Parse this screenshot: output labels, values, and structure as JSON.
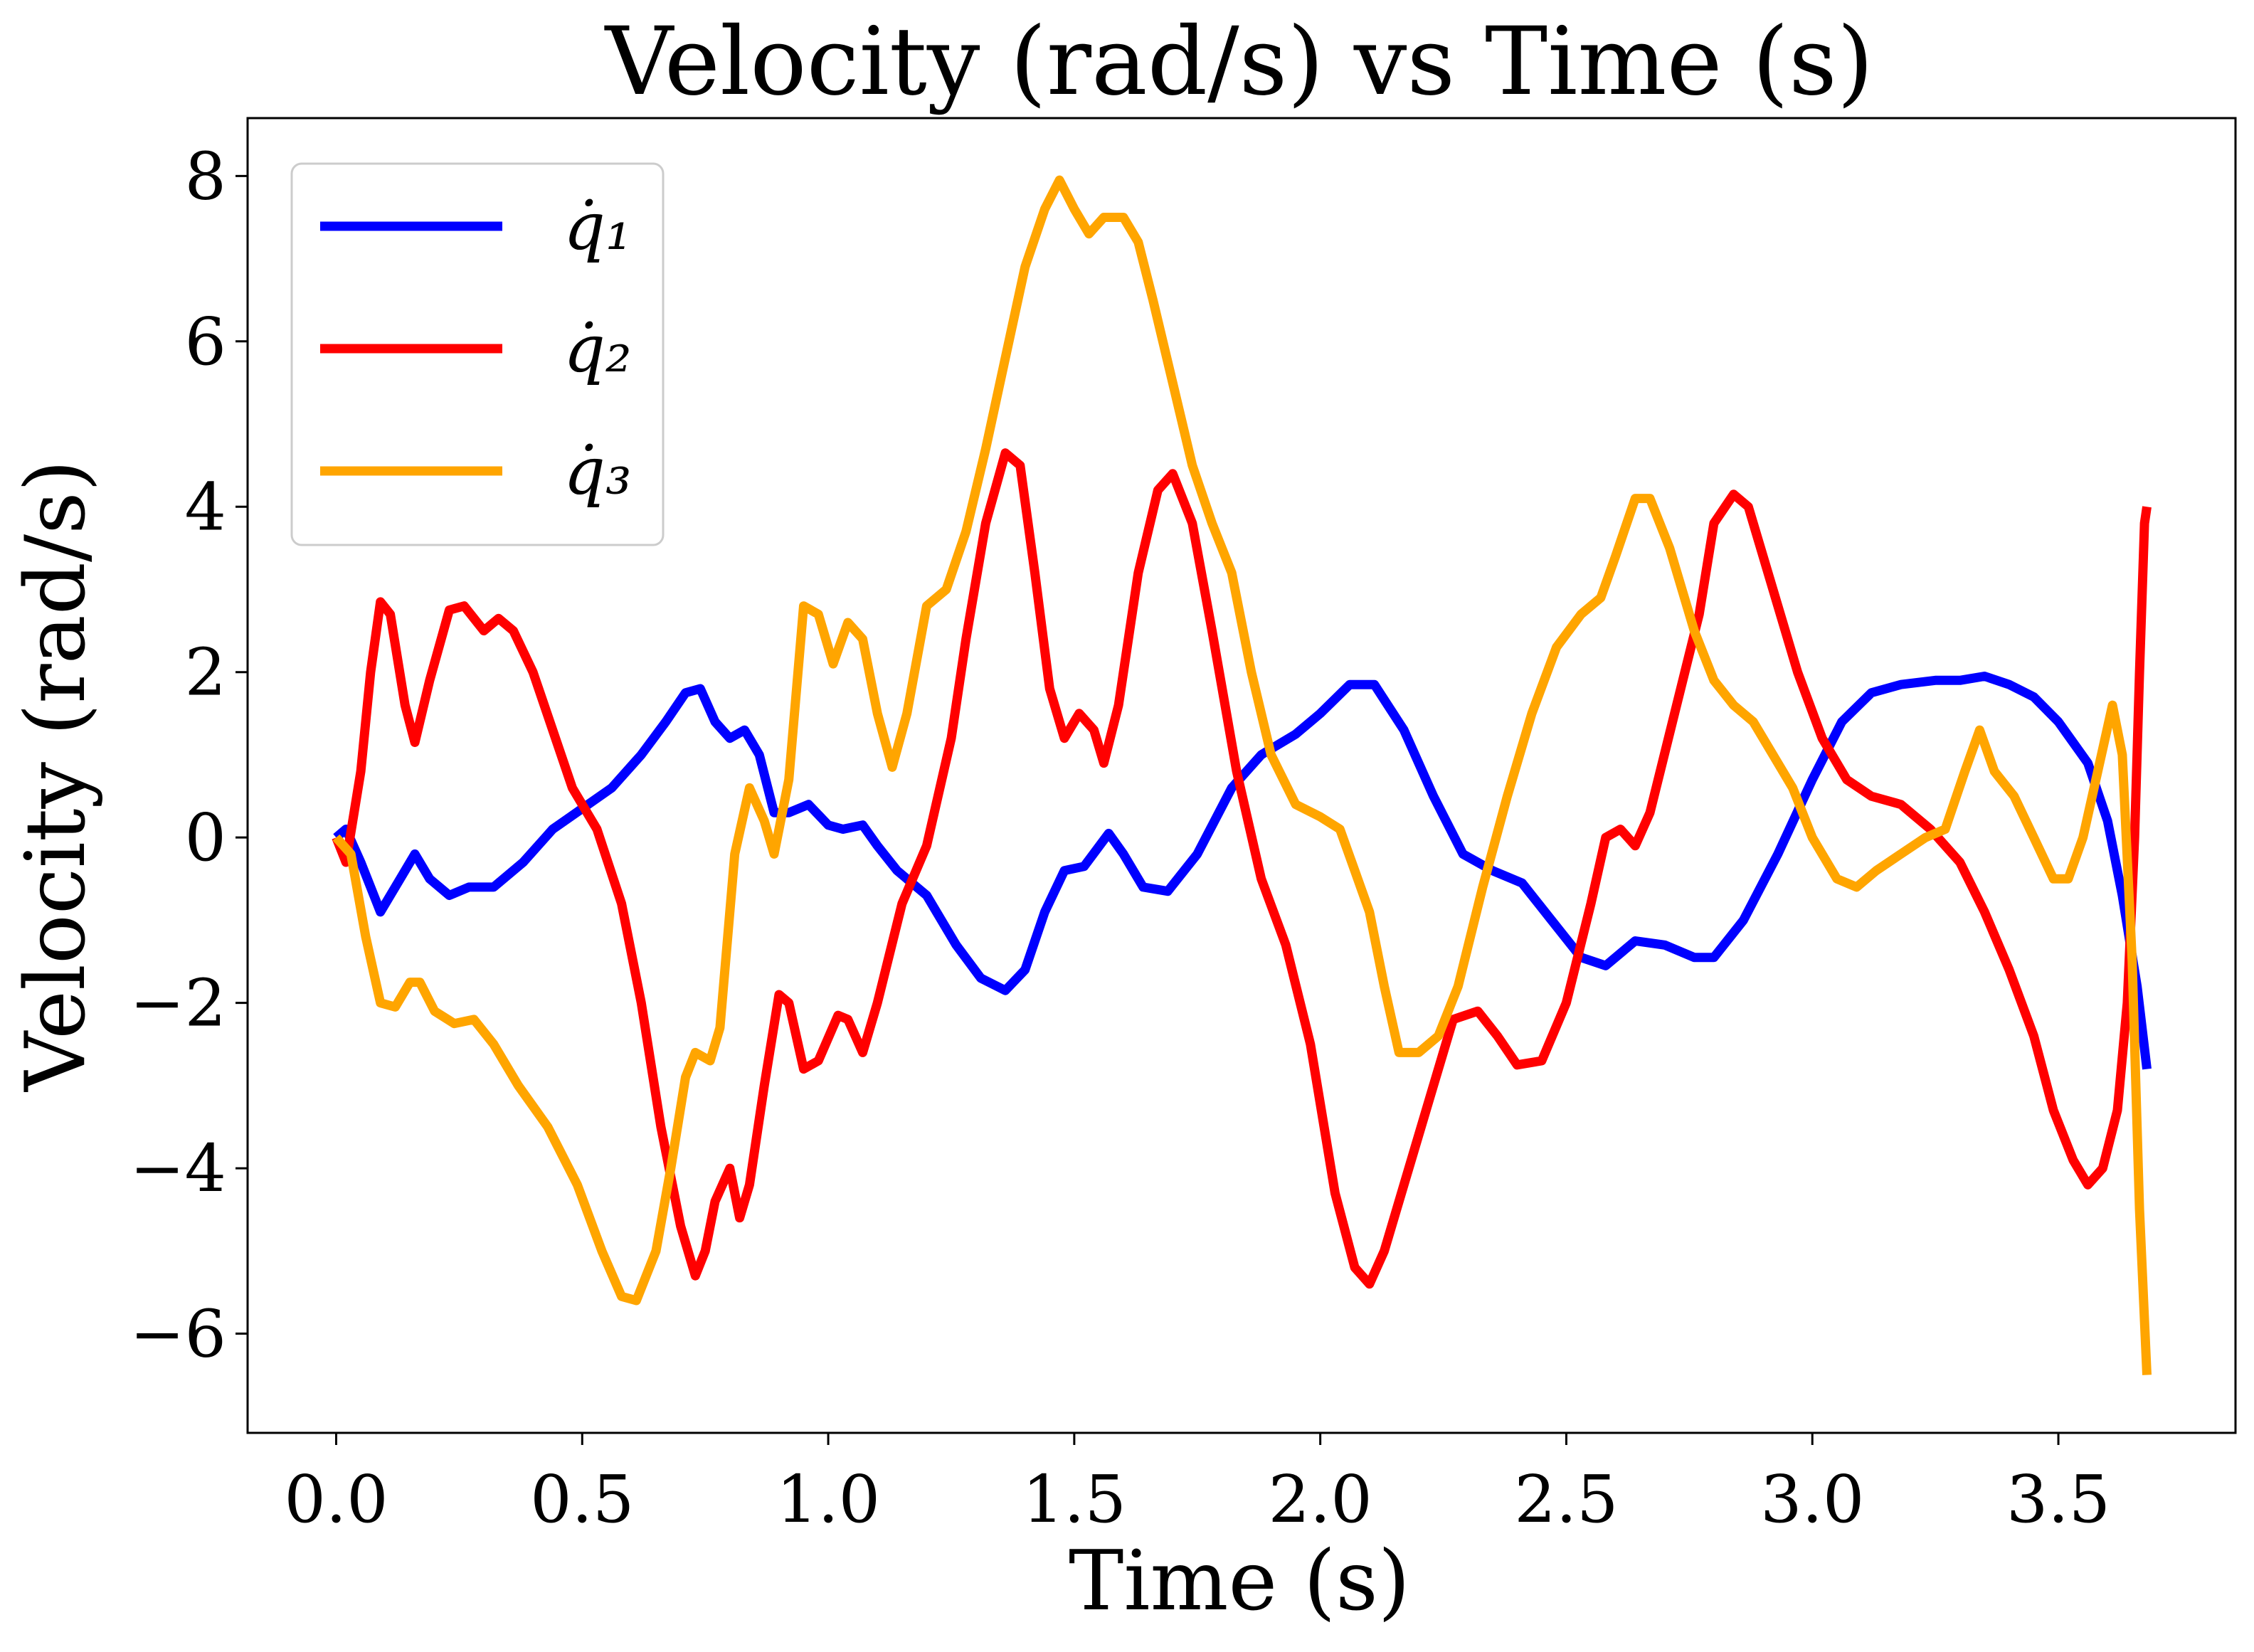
{
  "chart_data": {
    "type": "line",
    "title": "Velocity (rad/s) vs Time (s)",
    "xlabel": "Time (s)",
    "ylabel": "Velocity (rad/s)",
    "xlim": [
      -0.18,
      3.86
    ],
    "ylim": [
      -7.2,
      8.7
    ],
    "xticks": [
      0.0,
      0.5,
      1.0,
      1.5,
      2.0,
      2.5,
      3.0,
      3.5
    ],
    "xtick_labels": [
      "0.0",
      "0.5",
      "1.0",
      "1.5",
      "2.0",
      "2.5",
      "3.0",
      "3.5"
    ],
    "yticks": [
      -6,
      -4,
      -2,
      0,
      2,
      4,
      6,
      8
    ],
    "ytick_labels": [
      "−6",
      "−4",
      "−2",
      "0",
      "2",
      "4",
      "6",
      "8"
    ],
    "grid": false,
    "legend_position": "top-left",
    "series": [
      {
        "name": "q̇₁",
        "color": "#0000ff",
        "points": [
          [
            0.0,
            0.0
          ],
          [
            0.02,
            0.1
          ],
          [
            0.05,
            -0.3
          ],
          [
            0.09,
            -0.9
          ],
          [
            0.13,
            -0.5
          ],
          [
            0.16,
            -0.2
          ],
          [
            0.19,
            -0.5
          ],
          [
            0.23,
            -0.7
          ],
          [
            0.27,
            -0.6
          ],
          [
            0.32,
            -0.6
          ],
          [
            0.38,
            -0.3
          ],
          [
            0.44,
            0.1
          ],
          [
            0.5,
            0.35
          ],
          [
            0.56,
            0.6
          ],
          [
            0.62,
            1.0
          ],
          [
            0.67,
            1.4
          ],
          [
            0.71,
            1.75
          ],
          [
            0.74,
            1.8
          ],
          [
            0.77,
            1.4
          ],
          [
            0.8,
            1.2
          ],
          [
            0.83,
            1.3
          ],
          [
            0.86,
            1.0
          ],
          [
            0.89,
            0.3
          ],
          [
            0.92,
            0.3
          ],
          [
            0.96,
            0.4
          ],
          [
            1.0,
            0.15
          ],
          [
            1.03,
            0.1
          ],
          [
            1.07,
            0.15
          ],
          [
            1.1,
            -0.1
          ],
          [
            1.14,
            -0.4
          ],
          [
            1.2,
            -0.7
          ],
          [
            1.26,
            -1.3
          ],
          [
            1.31,
            -1.7
          ],
          [
            1.36,
            -1.85
          ],
          [
            1.4,
            -1.6
          ],
          [
            1.44,
            -0.9
          ],
          [
            1.48,
            -0.4
          ],
          [
            1.52,
            -0.35
          ],
          [
            1.57,
            0.05
          ],
          [
            1.6,
            -0.2
          ],
          [
            1.64,
            -0.6
          ],
          [
            1.69,
            -0.65
          ],
          [
            1.75,
            -0.2
          ],
          [
            1.82,
            0.6
          ],
          [
            1.88,
            1.0
          ],
          [
            1.95,
            1.25
          ],
          [
            2.0,
            1.5
          ],
          [
            2.06,
            1.85
          ],
          [
            2.11,
            1.85
          ],
          [
            2.17,
            1.3
          ],
          [
            2.23,
            0.5
          ],
          [
            2.29,
            -0.2
          ],
          [
            2.35,
            -0.4
          ],
          [
            2.41,
            -0.55
          ],
          [
            2.47,
            -1.0
          ],
          [
            2.53,
            -1.45
          ],
          [
            2.58,
            -1.55
          ],
          [
            2.64,
            -1.25
          ],
          [
            2.7,
            -1.3
          ],
          [
            2.76,
            -1.45
          ],
          [
            2.8,
            -1.45
          ],
          [
            2.86,
            -1.0
          ],
          [
            2.93,
            -0.2
          ],
          [
            3.0,
            0.7
          ],
          [
            3.06,
            1.4
          ],
          [
            3.12,
            1.75
          ],
          [
            3.18,
            1.85
          ],
          [
            3.25,
            1.9
          ],
          [
            3.3,
            1.9
          ],
          [
            3.35,
            1.95
          ],
          [
            3.4,
            1.85
          ],
          [
            3.45,
            1.7
          ],
          [
            3.5,
            1.4
          ],
          [
            3.56,
            0.9
          ],
          [
            3.6,
            0.2
          ],
          [
            3.63,
            -0.7
          ],
          [
            3.66,
            -1.8
          ],
          [
            3.68,
            -2.8
          ]
        ]
      },
      {
        "name": "q̇₂",
        "color": "#ff0000",
        "points": [
          [
            0.0,
            0.0
          ],
          [
            0.02,
            -0.3
          ],
          [
            0.05,
            0.8
          ],
          [
            0.07,
            2.0
          ],
          [
            0.09,
            2.85
          ],
          [
            0.11,
            2.7
          ],
          [
            0.14,
            1.6
          ],
          [
            0.16,
            1.15
          ],
          [
            0.19,
            1.9
          ],
          [
            0.23,
            2.75
          ],
          [
            0.26,
            2.8
          ],
          [
            0.3,
            2.5
          ],
          [
            0.33,
            2.65
          ],
          [
            0.36,
            2.5
          ],
          [
            0.4,
            2.0
          ],
          [
            0.44,
            1.3
          ],
          [
            0.48,
            0.6
          ],
          [
            0.53,
            0.1
          ],
          [
            0.58,
            -0.8
          ],
          [
            0.62,
            -2.0
          ],
          [
            0.66,
            -3.5
          ],
          [
            0.7,
            -4.7
          ],
          [
            0.73,
            -5.3
          ],
          [
            0.75,
            -5.0
          ],
          [
            0.77,
            -4.4
          ],
          [
            0.8,
            -4.0
          ],
          [
            0.82,
            -4.6
          ],
          [
            0.84,
            -4.2
          ],
          [
            0.87,
            -3.0
          ],
          [
            0.9,
            -1.9
          ],
          [
            0.92,
            -2.0
          ],
          [
            0.95,
            -2.8
          ],
          [
            0.98,
            -2.7
          ],
          [
            1.02,
            -2.15
          ],
          [
            1.04,
            -2.2
          ],
          [
            1.07,
            -2.6
          ],
          [
            1.1,
            -2.0
          ],
          [
            1.15,
            -0.8
          ],
          [
            1.2,
            -0.1
          ],
          [
            1.25,
            1.2
          ],
          [
            1.28,
            2.4
          ],
          [
            1.32,
            3.8
          ],
          [
            1.36,
            4.65
          ],
          [
            1.39,
            4.5
          ],
          [
            1.42,
            3.2
          ],
          [
            1.45,
            1.8
          ],
          [
            1.48,
            1.2
          ],
          [
            1.51,
            1.5
          ],
          [
            1.54,
            1.3
          ],
          [
            1.56,
            0.9
          ],
          [
            1.59,
            1.6
          ],
          [
            1.63,
            3.2
          ],
          [
            1.67,
            4.2
          ],
          [
            1.7,
            4.4
          ],
          [
            1.74,
            3.8
          ],
          [
            1.78,
            2.5
          ],
          [
            1.83,
            0.8
          ],
          [
            1.88,
            -0.5
          ],
          [
            1.93,
            -1.3
          ],
          [
            1.98,
            -2.5
          ],
          [
            2.03,
            -4.3
          ],
          [
            2.07,
            -5.2
          ],
          [
            2.1,
            -5.4
          ],
          [
            2.13,
            -5.0
          ],
          [
            2.18,
            -4.0
          ],
          [
            2.23,
            -3.0
          ],
          [
            2.27,
            -2.2
          ],
          [
            2.32,
            -2.1
          ],
          [
            2.36,
            -2.4
          ],
          [
            2.4,
            -2.75
          ],
          [
            2.45,
            -2.7
          ],
          [
            2.5,
            -2.0
          ],
          [
            2.55,
            -0.8
          ],
          [
            2.58,
            0.0
          ],
          [
            2.61,
            0.1
          ],
          [
            2.64,
            -0.1
          ],
          [
            2.67,
            0.3
          ],
          [
            2.72,
            1.5
          ],
          [
            2.77,
            2.7
          ],
          [
            2.8,
            3.8
          ],
          [
            2.84,
            4.15
          ],
          [
            2.87,
            4.0
          ],
          [
            2.92,
            3.0
          ],
          [
            2.97,
            2.0
          ],
          [
            3.02,
            1.2
          ],
          [
            3.07,
            0.7
          ],
          [
            3.12,
            0.5
          ],
          [
            3.18,
            0.4
          ],
          [
            3.24,
            0.1
          ],
          [
            3.3,
            -0.3
          ],
          [
            3.35,
            -0.9
          ],
          [
            3.4,
            -1.6
          ],
          [
            3.45,
            -2.4
          ],
          [
            3.49,
            -3.3
          ],
          [
            3.53,
            -3.9
          ],
          [
            3.56,
            -4.2
          ],
          [
            3.59,
            -4.0
          ],
          [
            3.62,
            -3.3
          ],
          [
            3.64,
            -2.0
          ],
          [
            3.655,
            0.0
          ],
          [
            3.665,
            2.0
          ],
          [
            3.675,
            3.8
          ],
          [
            3.68,
            4.0
          ]
        ]
      },
      {
        "name": "q̇₃",
        "color": "#ffa500",
        "points": [
          [
            0.0,
            0.0
          ],
          [
            0.03,
            -0.2
          ],
          [
            0.06,
            -1.2
          ],
          [
            0.09,
            -2.0
          ],
          [
            0.12,
            -2.05
          ],
          [
            0.15,
            -1.75
          ],
          [
            0.17,
            -1.75
          ],
          [
            0.2,
            -2.1
          ],
          [
            0.24,
            -2.25
          ],
          [
            0.28,
            -2.2
          ],
          [
            0.32,
            -2.5
          ],
          [
            0.37,
            -3.0
          ],
          [
            0.43,
            -3.5
          ],
          [
            0.49,
            -4.2
          ],
          [
            0.54,
            -5.0
          ],
          [
            0.58,
            -5.55
          ],
          [
            0.61,
            -5.6
          ],
          [
            0.65,
            -5.0
          ],
          [
            0.68,
            -4.0
          ],
          [
            0.71,
            -2.9
          ],
          [
            0.73,
            -2.6
          ],
          [
            0.76,
            -2.7
          ],
          [
            0.78,
            -2.3
          ],
          [
            0.81,
            -0.2
          ],
          [
            0.84,
            0.6
          ],
          [
            0.87,
            0.2
          ],
          [
            0.89,
            -0.2
          ],
          [
            0.92,
            0.7
          ],
          [
            0.95,
            2.8
          ],
          [
            0.98,
            2.7
          ],
          [
            1.01,
            2.1
          ],
          [
            1.04,
            2.6
          ],
          [
            1.07,
            2.4
          ],
          [
            1.1,
            1.5
          ],
          [
            1.13,
            0.85
          ],
          [
            1.16,
            1.5
          ],
          [
            1.2,
            2.8
          ],
          [
            1.24,
            3.0
          ],
          [
            1.28,
            3.7
          ],
          [
            1.32,
            4.7
          ],
          [
            1.36,
            5.8
          ],
          [
            1.4,
            6.9
          ],
          [
            1.44,
            7.6
          ],
          [
            1.47,
            7.95
          ],
          [
            1.5,
            7.6
          ],
          [
            1.53,
            7.3
          ],
          [
            1.56,
            7.5
          ],
          [
            1.6,
            7.5
          ],
          [
            1.63,
            7.2
          ],
          [
            1.66,
            6.5
          ],
          [
            1.7,
            5.5
          ],
          [
            1.74,
            4.5
          ],
          [
            1.78,
            3.8
          ],
          [
            1.82,
            3.2
          ],
          [
            1.86,
            2.0
          ],
          [
            1.9,
            1.0
          ],
          [
            1.95,
            0.4
          ],
          [
            2.0,
            0.25
          ],
          [
            2.04,
            0.1
          ],
          [
            2.07,
            -0.4
          ],
          [
            2.1,
            -0.9
          ],
          [
            2.13,
            -1.8
          ],
          [
            2.16,
            -2.6
          ],
          [
            2.2,
            -2.6
          ],
          [
            2.24,
            -2.4
          ],
          [
            2.28,
            -1.8
          ],
          [
            2.33,
            -0.6
          ],
          [
            2.38,
            0.5
          ],
          [
            2.43,
            1.5
          ],
          [
            2.48,
            2.3
          ],
          [
            2.53,
            2.7
          ],
          [
            2.57,
            2.9
          ],
          [
            2.6,
            3.4
          ],
          [
            2.64,
            4.1
          ],
          [
            2.67,
            4.1
          ],
          [
            2.71,
            3.5
          ],
          [
            2.76,
            2.5
          ],
          [
            2.8,
            1.9
          ],
          [
            2.84,
            1.6
          ],
          [
            2.88,
            1.4
          ],
          [
            2.92,
            1.0
          ],
          [
            2.96,
            0.6
          ],
          [
            3.0,
            0.0
          ],
          [
            3.05,
            -0.5
          ],
          [
            3.09,
            -0.6
          ],
          [
            3.13,
            -0.4
          ],
          [
            3.18,
            -0.2
          ],
          [
            3.23,
            0.0
          ],
          [
            3.27,
            0.1
          ],
          [
            3.31,
            0.8
          ],
          [
            3.34,
            1.3
          ],
          [
            3.37,
            0.8
          ],
          [
            3.41,
            0.5
          ],
          [
            3.45,
            0.0
          ],
          [
            3.49,
            -0.5
          ],
          [
            3.52,
            -0.5
          ],
          [
            3.55,
            0.0
          ],
          [
            3.58,
            0.8
          ],
          [
            3.61,
            1.6
          ],
          [
            3.63,
            1.0
          ],
          [
            3.65,
            -1.5
          ],
          [
            3.665,
            -4.5
          ],
          [
            3.68,
            -6.5
          ]
        ]
      }
    ]
  }
}
